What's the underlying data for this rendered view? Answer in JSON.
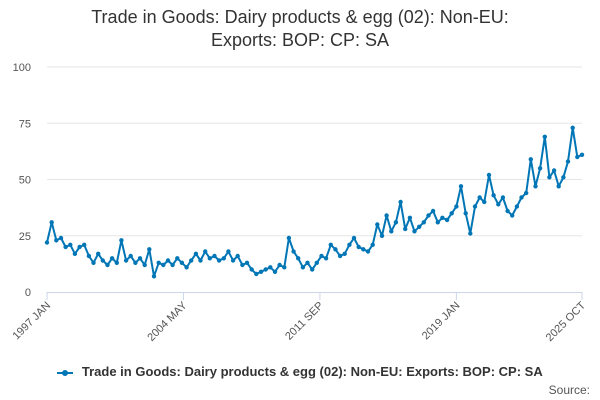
{
  "chart_data": {
    "type": "line",
    "title_lines": [
      "Trade in Goods: Dairy products & egg (02): Non-EU:",
      "Exports: BOP: CP: SA"
    ],
    "xlabel": "",
    "ylabel": "",
    "x_tick_labels": [
      "1997 JAN",
      "2004 MAY",
      "2011 SEP",
      "2019 JAN",
      "2025 OCT"
    ],
    "y_tick_labels": [
      "0",
      "25",
      "50",
      "75",
      "100"
    ],
    "ylim": [
      0,
      100
    ],
    "xlim": [
      "1997-01",
      "2025-10"
    ],
    "grid": true,
    "legend_position": "bottom",
    "series": [
      {
        "name": "Trade in Goods: Dairy products & egg (02): Non-EU: Exports: BOP: CP: SA",
        "color": "#0076b6",
        "points": [
          [
            "1997-01",
            22
          ],
          [
            "1997-04",
            31
          ],
          [
            "1997-07",
            23
          ],
          [
            "1997-10",
            24
          ],
          [
            "1998-01",
            20
          ],
          [
            "1998-04",
            21
          ],
          [
            "1998-07",
            17
          ],
          [
            "1998-10",
            20
          ],
          [
            "1999-01",
            21
          ],
          [
            "1999-04",
            16
          ],
          [
            "1999-07",
            13
          ],
          [
            "1999-10",
            17
          ],
          [
            "2000-01",
            14
          ],
          [
            "2000-04",
            12
          ],
          [
            "2000-07",
            15
          ],
          [
            "2000-10",
            13
          ],
          [
            "2001-01",
            23
          ],
          [
            "2001-04",
            14
          ],
          [
            "2001-07",
            16
          ],
          [
            "2001-10",
            13
          ],
          [
            "2002-01",
            15
          ],
          [
            "2002-04",
            12
          ],
          [
            "2002-07",
            19
          ],
          [
            "2002-10",
            7
          ],
          [
            "2003-01",
            13
          ],
          [
            "2003-04",
            12
          ],
          [
            "2003-07",
            14
          ],
          [
            "2003-10",
            12
          ],
          [
            "2004-01",
            15
          ],
          [
            "2004-04",
            13
          ],
          [
            "2004-07",
            11
          ],
          [
            "2004-10",
            14
          ],
          [
            "2005-01",
            17
          ],
          [
            "2005-04",
            14
          ],
          [
            "2005-07",
            18
          ],
          [
            "2005-10",
            15
          ],
          [
            "2006-01",
            16
          ],
          [
            "2006-04",
            14
          ],
          [
            "2006-07",
            15
          ],
          [
            "2006-10",
            18
          ],
          [
            "2007-01",
            14
          ],
          [
            "2007-04",
            16
          ],
          [
            "2007-07",
            12
          ],
          [
            "2007-10",
            13
          ],
          [
            "2008-01",
            10
          ],
          [
            "2008-04",
            8
          ],
          [
            "2008-07",
            9
          ],
          [
            "2008-10",
            10
          ],
          [
            "2009-01",
            11
          ],
          [
            "2009-04",
            9
          ],
          [
            "2009-07",
            12
          ],
          [
            "2009-10",
            11
          ],
          [
            "2010-01",
            24
          ],
          [
            "2010-04",
            18
          ],
          [
            "2010-07",
            15
          ],
          [
            "2010-10",
            11
          ],
          [
            "2011-01",
            13
          ],
          [
            "2011-04",
            10
          ],
          [
            "2011-07",
            13
          ],
          [
            "2011-10",
            16
          ],
          [
            "2012-01",
            15
          ],
          [
            "2012-04",
            21
          ],
          [
            "2012-07",
            19
          ],
          [
            "2012-10",
            16
          ],
          [
            "2013-01",
            17
          ],
          [
            "2013-04",
            21
          ],
          [
            "2013-07",
            24
          ],
          [
            "2013-10",
            20
          ],
          [
            "2014-01",
            19
          ],
          [
            "2014-04",
            18
          ],
          [
            "2014-07",
            21
          ],
          [
            "2014-10",
            30
          ],
          [
            "2015-01",
            25
          ],
          [
            "2015-04",
            34
          ],
          [
            "2015-07",
            27
          ],
          [
            "2015-10",
            31
          ],
          [
            "2016-01",
            40
          ],
          [
            "2016-04",
            28
          ],
          [
            "2016-07",
            33
          ],
          [
            "2016-10",
            27
          ],
          [
            "2017-01",
            29
          ],
          [
            "2017-04",
            31
          ],
          [
            "2017-07",
            34
          ],
          [
            "2017-10",
            36
          ],
          [
            "2018-01",
            31
          ],
          [
            "2018-04",
            33
          ],
          [
            "2018-07",
            32
          ],
          [
            "2018-10",
            35
          ],
          [
            "2019-01",
            38
          ],
          [
            "2019-04",
            47
          ],
          [
            "2019-07",
            35
          ],
          [
            "2019-10",
            26
          ],
          [
            "2020-01",
            38
          ],
          [
            "2020-04",
            42
          ],
          [
            "2020-07",
            40
          ],
          [
            "2020-10",
            52
          ],
          [
            "2021-01",
            43
          ],
          [
            "2021-04",
            39
          ],
          [
            "2021-07",
            42
          ],
          [
            "2021-10",
            36
          ],
          [
            "2022-01",
            34
          ],
          [
            "2022-04",
            38
          ],
          [
            "2022-07",
            42
          ],
          [
            "2022-10",
            44
          ],
          [
            "2023-01",
            59
          ],
          [
            "2023-04",
            47
          ],
          [
            "2023-07",
            55
          ],
          [
            "2023-10",
            69
          ],
          [
            "2024-01",
            51
          ],
          [
            "2024-04",
            54
          ],
          [
            "2024-07",
            47
          ],
          [
            "2024-10",
            51
          ],
          [
            "2025-01",
            58
          ],
          [
            "2025-04",
            73
          ],
          [
            "2025-07",
            60
          ],
          [
            "2025-10",
            61
          ]
        ]
      }
    ]
  },
  "credit": "Source:"
}
